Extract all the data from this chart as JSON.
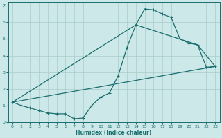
{
  "title": "",
  "xlabel": "Humidex (Indice chaleur)",
  "bg_color": "#cce8e8",
  "grid_color": "#aacccc",
  "line_color": "#1a6e6e",
  "xlim": [
    -0.5,
    23.5
  ],
  "ylim": [
    0,
    7.2
  ],
  "xticks": [
    0,
    1,
    2,
    3,
    4,
    5,
    6,
    7,
    8,
    9,
    10,
    11,
    12,
    13,
    14,
    15,
    16,
    17,
    18,
    19,
    20,
    21,
    22,
    23
  ],
  "yticks": [
    0,
    1,
    2,
    3,
    4,
    5,
    6,
    7
  ],
  "line1_x": [
    0,
    1,
    2,
    3,
    4,
    5,
    6,
    7,
    8,
    9,
    10,
    11,
    12,
    13,
    14,
    15,
    16,
    17,
    18,
    19,
    20,
    21,
    22,
    23
  ],
  "line1_y": [
    1.2,
    1.0,
    0.85,
    0.7,
    0.55,
    0.5,
    0.5,
    0.2,
    0.25,
    1.0,
    1.5,
    1.75,
    2.8,
    4.5,
    5.85,
    6.8,
    6.75,
    6.5,
    6.3,
    5.0,
    4.75,
    4.65,
    3.3,
    3.35
  ],
  "line2_x": [
    0,
    23
  ],
  "line2_y": [
    1.2,
    3.35
  ],
  "line3_x": [
    0,
    14,
    21,
    23
  ],
  "line3_y": [
    1.2,
    5.85,
    4.65,
    3.35
  ]
}
